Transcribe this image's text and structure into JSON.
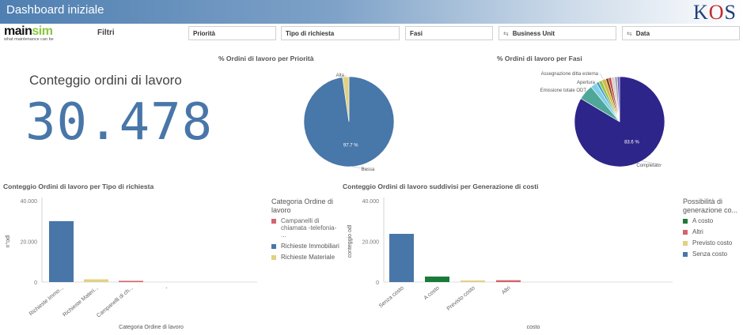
{
  "header": {
    "title": "Dashboard iniziale",
    "brand": "KOS"
  },
  "logo": {
    "main": "main",
    "accent": "sim",
    "tagline": "what maintenance can be"
  },
  "filters": {
    "label": "Filtri",
    "boxes": [
      {
        "label": "Priorità",
        "icon": ""
      },
      {
        "label": "Tipo di richiesta",
        "icon": ""
      },
      {
        "label": "Fasi",
        "icon": ""
      },
      {
        "label": "Business Unit",
        "icon": "⇆"
      },
      {
        "label": "Data",
        "icon": "⇆"
      }
    ]
  },
  "kpi": {
    "label": "Conteggio ordini di lavoro",
    "value": "30.478",
    "color": "#4876a8"
  },
  "chart_data": [
    {
      "type": "pie",
      "title": "% Ordini di lavoro per Priorità",
      "slices": [
        {
          "label": "Bassa",
          "value": 97.7,
          "value_label": "97.7 %",
          "color": "#4877a9"
        },
        {
          "label": "Alta",
          "value": 2.3,
          "value_label": "",
          "color": "#e3d183"
        }
      ]
    },
    {
      "type": "pie",
      "title": "% Ordini di lavoro per Fasi",
      "slices": [
        {
          "label": "Completato",
          "value": 83.6,
          "value_label": "83.6 %",
          "color": "#2d2589"
        },
        {
          "label": "Emissione totale ODT",
          "value": 5.5,
          "value_label": "",
          "color": "#4fa79a"
        },
        {
          "label": "",
          "value": 2.2,
          "value_label": "",
          "color": "#7fd0e6"
        },
        {
          "label": "Apertura",
          "value": 1.0,
          "value_label": "",
          "color": "#4a9ad4"
        },
        {
          "label": "",
          "value": 1.2,
          "value_label": "",
          "color": "#8cc63f"
        },
        {
          "label": "Assegnazione ditta esterna",
          "value": 1.5,
          "value_label": "",
          "color": "#d4b84a"
        },
        {
          "label": "",
          "value": 1.0,
          "value_label": "",
          "color": "#8b4513"
        },
        {
          "label": "",
          "value": 1.0,
          "value_label": "",
          "color": "#c94a4a"
        },
        {
          "label": "",
          "value": 1.2,
          "value_label": "",
          "color": "#d3d3d3"
        },
        {
          "label": "",
          "value": 1.0,
          "value_label": "",
          "color": "#a9a9a9"
        },
        {
          "label": "",
          "value": 0.8,
          "value_label": "",
          "color": "#6a5acd"
        }
      ]
    },
    {
      "type": "bar",
      "title": "Conteggio Ordini di lavoro per Tipo di richiesta",
      "categories": [
        "Richieste Immo...",
        "Richieste Materi...",
        "Campanelli di ch...",
        "-"
      ],
      "values": [
        29950,
        1350,
        600,
        0
      ],
      "colors": [
        "#4876a8",
        "#e3d183",
        "#d4636b",
        "#4876a8"
      ],
      "ylim": [
        0,
        40000
      ],
      "yticks": [
        "0",
        "20.000",
        "40.000"
      ],
      "xlabel": "Categoria Ordine di lavoro",
      "ylabel": "n°odl",
      "legend": {
        "title": "Categoria Ordine di lavoro",
        "items": [
          {
            "label": "Campanelli di chiamata -telefonia-",
            "label_extra": "...",
            "color": "#d4636b"
          },
          {
            "label": "Richieste Immobiliari",
            "label_extra": "",
            "color": "#4876a8"
          },
          {
            "label": "Richieste Materiale",
            "label_extra": "",
            "color": "#e3d183"
          }
        ]
      }
    },
    {
      "type": "bar",
      "title": "Conteggio Ordini di lavoro suddivisi per Generazione di costi",
      "categories": [
        "Senza costo",
        "A costo",
        "Previsto costo",
        "Altri"
      ],
      "values": [
        23700,
        2700,
        800,
        900
      ],
      "colors": [
        "#4876a8",
        "#1a7a3a",
        "#e3d183",
        "#d4636b"
      ],
      "ylim": [
        0,
        40000
      ],
      "yticks": [
        "0",
        "20.000",
        "40.000"
      ],
      "xlabel": "costo",
      "ylabel": "conteggio odl",
      "legend": {
        "title": "Possibilità di generazione co...",
        "items": [
          {
            "label": "A costo",
            "label_extra": "",
            "color": "#1a7a3a"
          },
          {
            "label": "Altri",
            "label_extra": "",
            "color": "#d4636b"
          },
          {
            "label": "Previsto costo",
            "label_extra": "",
            "color": "#e3d183"
          },
          {
            "label": "Senza costo",
            "label_extra": "",
            "color": "#4876a8"
          }
        ]
      }
    }
  ]
}
